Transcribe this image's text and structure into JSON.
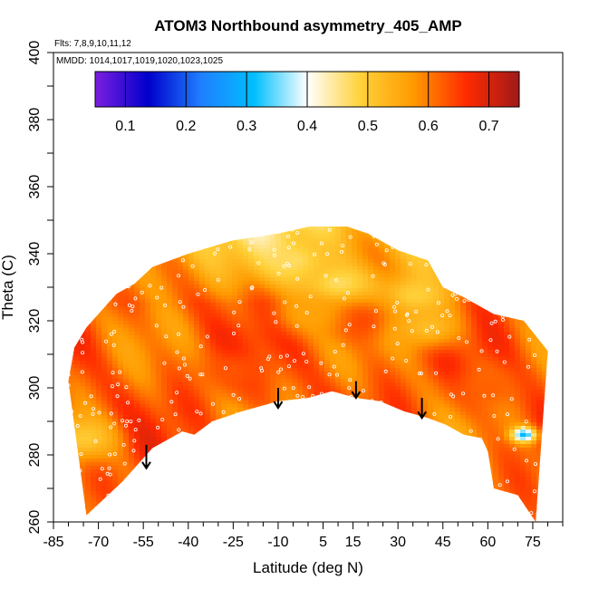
{
  "chart_data": {
    "type": "heatmap",
    "title": "ATOM3 Northbound asymmetry_405_AMP",
    "flights_text": "Flts: 7,8,9,10,11,12",
    "mmdd_text": "MMDD: 1014,1017,1019,1020,1023,1025",
    "xlabel": "Latitude (deg N)",
    "ylabel": "Theta (C)",
    "xlim": [
      -85,
      85
    ],
    "ylim": [
      260,
      400
    ],
    "x_ticks": [
      -85,
      -70,
      -55,
      -40,
      -25,
      -10,
      5,
      15,
      30,
      45,
      60,
      75
    ],
    "y_ticks": [
      260,
      280,
      300,
      320,
      340,
      360,
      380,
      400
    ],
    "colorbar": {
      "range": [
        0.05,
        0.75
      ],
      "ticks": [
        0.1,
        0.2,
        0.3,
        0.4,
        0.5,
        0.6,
        0.7
      ],
      "colors": [
        "#7b1fe0",
        "#0000cc",
        "#1f7fff",
        "#00bfff",
        "#ffffff",
        "#ffd23a",
        "#ff9a00",
        "#ff2a00",
        "#a01a1a"
      ]
    },
    "coverage_bottom": [
      [
        -74,
        262
      ],
      [
        -62,
        272
      ],
      [
        -52,
        282
      ],
      [
        -42,
        287
      ],
      [
        -38,
        286
      ],
      [
        -32,
        290
      ],
      [
        -22,
        293
      ],
      [
        -10,
        296
      ],
      [
        0,
        297
      ],
      [
        8,
        299
      ],
      [
        16,
        297
      ],
      [
        24,
        296
      ],
      [
        32,
        293
      ],
      [
        40,
        291
      ],
      [
        46,
        289
      ],
      [
        52,
        286
      ],
      [
        58,
        285
      ],
      [
        60,
        281
      ],
      [
        62,
        270
      ],
      [
        70,
        268
      ],
      [
        76,
        260
      ]
    ],
    "coverage_top": [
      [
        -80,
        302
      ],
      [
        -78,
        312
      ],
      [
        -74,
        318
      ],
      [
        -64,
        328
      ],
      [
        -58,
        331
      ],
      [
        -52,
        336
      ],
      [
        -40,
        340
      ],
      [
        -25,
        344
      ],
      [
        -10,
        346
      ],
      [
        0,
        348
      ],
      [
        10,
        349
      ],
      [
        20,
        346
      ],
      [
        30,
        341
      ],
      [
        40,
        338
      ],
      [
        45,
        330
      ],
      [
        52,
        327
      ],
      [
        62,
        322
      ],
      [
        72,
        320
      ],
      [
        80,
        311
      ]
    ],
    "arrows": [
      {
        "x": -54,
        "y_top": 283,
        "y_bottom": 276
      },
      {
        "x": -10,
        "y_top": 300,
        "y_bottom": 294
      },
      {
        "x": 16,
        "y_top": 302,
        "y_bottom": 297
      },
      {
        "x": 38,
        "y_top": 297,
        "y_bottom": 291
      }
    ],
    "features": [
      {
        "x": 10,
        "y": 330,
        "v": 0.45
      },
      {
        "x": -5,
        "y": 338,
        "v": 0.47
      },
      {
        "x": 35,
        "y": 327,
        "v": 0.48
      },
      {
        "x": -75,
        "y": 285,
        "v": 0.5
      },
      {
        "x": 18,
        "y": 320,
        "v": 0.65
      },
      {
        "x": 40,
        "y": 318,
        "v": 0.52
      },
      {
        "x": 0,
        "y": 322,
        "v": 0.56
      },
      {
        "x": -25,
        "y": 305,
        "v": 0.63
      },
      {
        "x": 60,
        "y": 300,
        "v": 0.62
      },
      {
        "x": 72,
        "y": 286,
        "v": 0.3
      }
    ]
  }
}
